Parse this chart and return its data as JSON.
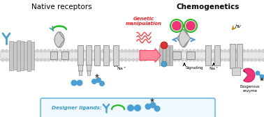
{
  "title_left": "Native receptors",
  "title_right": "Chemogenetics",
  "genetic_label": "Genetic\nmanipulation",
  "signaling_label": "Signaling",
  "na_label_left": "Na⁺",
  "na_label_right": "Na⁺",
  "exogenous_label": "Exogenous\nenzyme",
  "designer_label": "Designer ligands:",
  "hv_label": "hv",
  "bg_color": "#ffffff",
  "receptor_fill": "#d4d4d4",
  "receptor_border": "#888888",
  "blue_ligand": "#4a9fd4",
  "blue_dark": "#2277aa",
  "green_color": "#22bb22",
  "pink_color": "#ee3377",
  "arrow_pink": "#ff8899",
  "arrow_pink_border": "#ff4466",
  "box_blue": "#66bbee",
  "text_blue": "#3399cc",
  "dna_red": "#ff2222",
  "na_arrow_color": "#111111",
  "mem_fill": "#e0e0e0",
  "mem_line": "#cccccc"
}
